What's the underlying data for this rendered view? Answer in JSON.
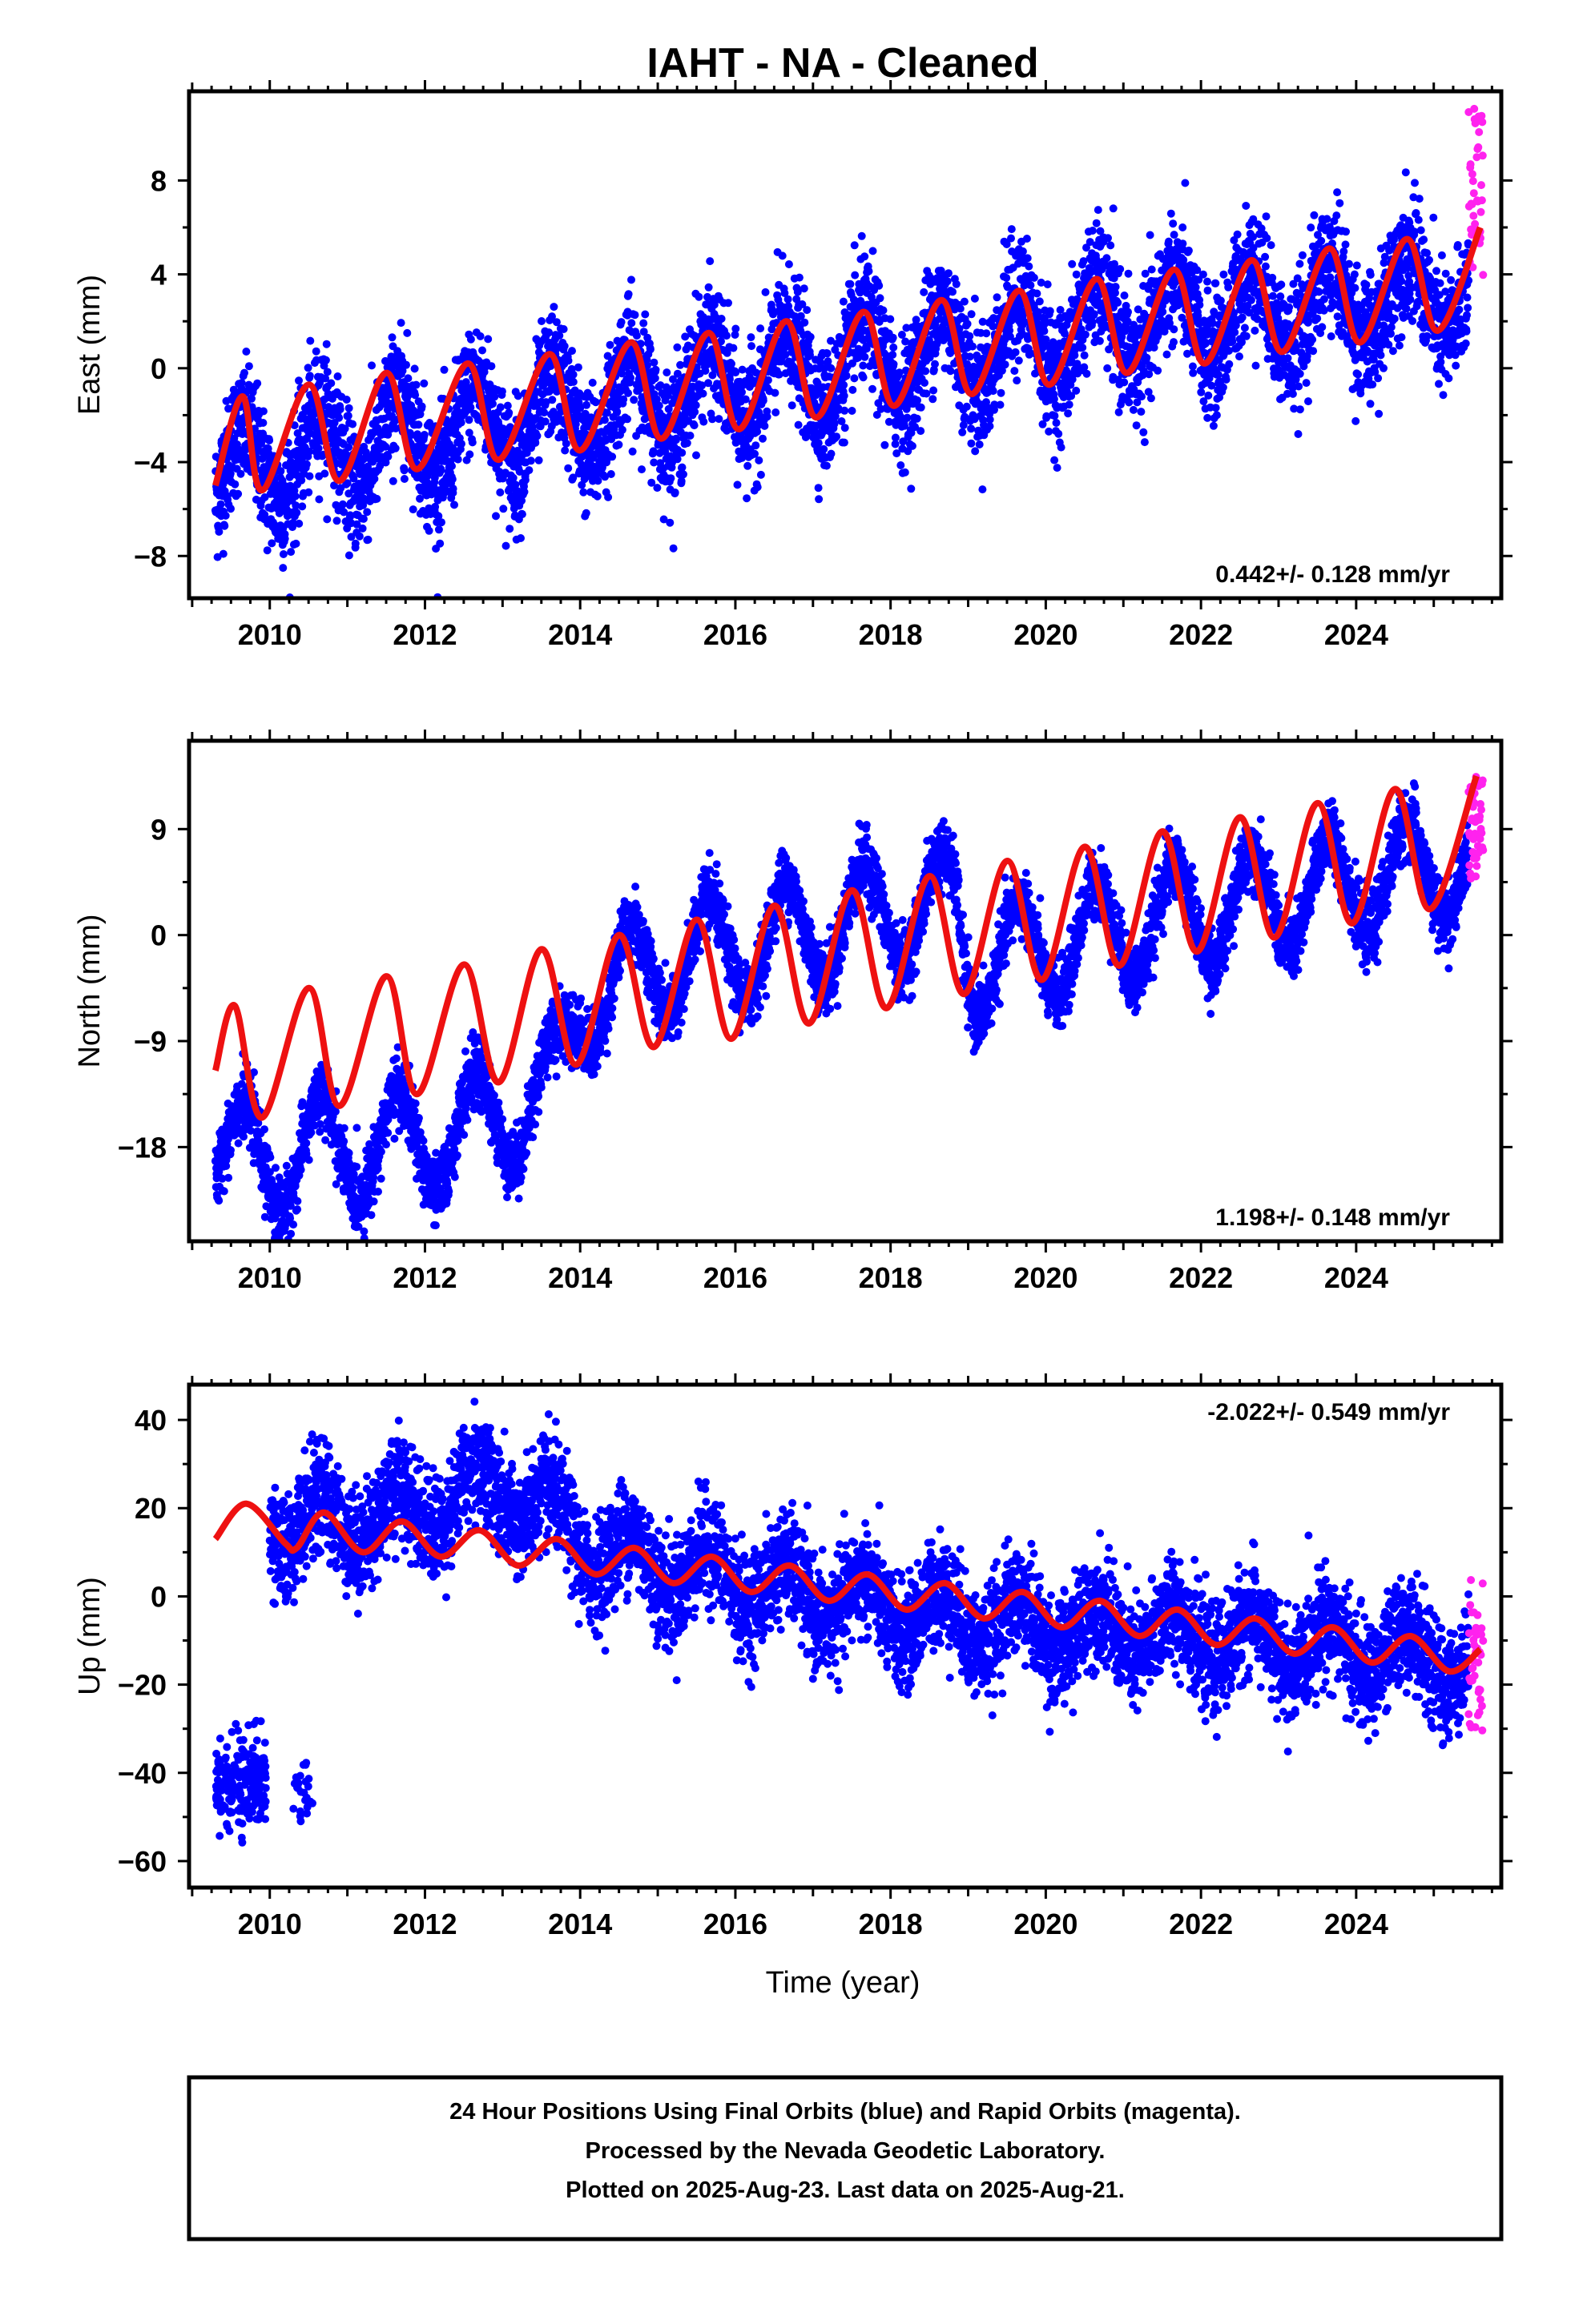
{
  "title": "IAHT  - NA - Cleaned",
  "x_axis_label": "Time (year)",
  "footer": {
    "line1": "24 Hour Positions Using Final Orbits (blue) and Rapid Orbits (magenta).",
    "line2": "Processed by the Nevada Geodetic Laboratory.",
    "line3": "Plotted on 2025-Aug-23. Last data on 2025-Aug-21."
  },
  "colors": {
    "final": "#0000ff",
    "rapid": "#ff22ee",
    "model": "#ee1111"
  },
  "chart_data": [
    {
      "type": "scatter",
      "ylabel": "East (mm)",
      "rate_text": "0.442+/- 0.128 mm/yr",
      "xlim": [
        2008.96,
        2025.87
      ],
      "ylim": [
        -9.8,
        11.8
      ],
      "xticks": [
        2010,
        2012,
        2014,
        2016,
        2018,
        2020,
        2022,
        2024
      ],
      "yticks": [
        -8,
        -4,
        0,
        4,
        8
      ],
      "series": [
        {
          "kind": "daily_positions_final",
          "x_range": [
            2009.3,
            2025.45
          ],
          "trend_points": [
            [
              2009.3,
              -4.6
            ],
            [
              2010.0,
              -4.0
            ],
            [
              2011.0,
              -3.4
            ],
            [
              2012.0,
              -2.8
            ],
            [
              2013.0,
              -2.4
            ],
            [
              2014.0,
              -1.9
            ],
            [
              2015.0,
              -1.2
            ],
            [
              2016.0,
              -0.6
            ],
            [
              2017.0,
              -0.1
            ],
            [
              2018.0,
              0.4
            ],
            [
              2019.0,
              0.9
            ],
            [
              2020.0,
              1.4
            ],
            [
              2021.0,
              1.9
            ],
            [
              2022.0,
              2.2
            ],
            [
              2023.0,
              2.5
            ],
            [
              2024.0,
              2.8
            ],
            [
              2025.45,
              3.3
            ]
          ],
          "seasonal_amplitude": 1.8,
          "scatter": 1.3
        },
        {
          "kind": "daily_positions_rapid",
          "x_range": [
            2025.45,
            2025.64
          ],
          "y_range": [
            3.0,
            11.3
          ]
        },
        {
          "kind": "model",
          "points": [
            [
              2009.3,
              -5.0
            ],
            [
              2009.65,
              -1.2
            ],
            [
              2009.9,
              -5.2
            ],
            [
              2010.5,
              -0.7
            ],
            [
              2010.9,
              -4.8
            ],
            [
              2011.5,
              -0.2
            ],
            [
              2011.9,
              -4.3
            ],
            [
              2012.55,
              0.2
            ],
            [
              2012.95,
              -3.9
            ],
            [
              2013.6,
              0.6
            ],
            [
              2014.0,
              -3.5
            ],
            [
              2014.65,
              1.1
            ],
            [
              2015.05,
              -3.0
            ],
            [
              2015.65,
              1.5
            ],
            [
              2016.05,
              -2.6
            ],
            [
              2016.65,
              2.0
            ],
            [
              2017.05,
              -2.1
            ],
            [
              2017.65,
              2.4
            ],
            [
              2018.05,
              -1.6
            ],
            [
              2018.65,
              2.9
            ],
            [
              2019.05,
              -1.1
            ],
            [
              2019.65,
              3.3
            ],
            [
              2020.05,
              -0.7
            ],
            [
              2020.65,
              3.8
            ],
            [
              2021.05,
              -0.2
            ],
            [
              2021.65,
              4.2
            ],
            [
              2022.05,
              0.2
            ],
            [
              2022.65,
              4.6
            ],
            [
              2023.05,
              0.7
            ],
            [
              2023.65,
              5.1
            ],
            [
              2024.05,
              1.1
            ],
            [
              2024.65,
              5.5
            ],
            [
              2025.05,
              1.6
            ],
            [
              2025.6,
              6.0
            ]
          ]
        }
      ]
    },
    {
      "type": "scatter",
      "ylabel": "North (mm)",
      "rate_text": "1.198+/- 0.148 mm/yr",
      "xlim": [
        2008.96,
        2025.87
      ],
      "ylim": [
        -26.0,
        16.5
      ],
      "xticks": [
        2010,
        2012,
        2014,
        2016,
        2018,
        2020,
        2022,
        2024
      ],
      "yticks": [
        -18,
        -9,
        0,
        9
      ],
      "series": [
        {
          "kind": "daily_positions_final",
          "x_range": [
            2009.3,
            2025.45
          ],
          "trend_points": [
            [
              2009.3,
              -18.5
            ],
            [
              2010.0,
              -19.0
            ],
            [
              2011.0,
              -18.0
            ],
            [
              2012.0,
              -17.5
            ],
            [
              2013.0,
              -15.5
            ],
            [
              2013.7,
              -12.5
            ],
            [
              2014.0,
              -5.5
            ],
            [
              2015.0,
              -2.5
            ],
            [
              2016.0,
              -1.0
            ],
            [
              2017.0,
              0.5
            ],
            [
              2018.0,
              2.0
            ],
            [
              2018.85,
              2.5
            ],
            [
              2019.0,
              -2.5
            ],
            [
              2020.0,
              -1.0
            ],
            [
              2021.0,
              0.5
            ],
            [
              2022.0,
              2.0
            ],
            [
              2023.0,
              3.0
            ],
            [
              2024.0,
              4.5
            ],
            [
              2025.45,
              6.0
            ]
          ],
          "seasonal_amplitude": 4.5,
          "scatter": 1.4
        },
        {
          "kind": "daily_positions_rapid",
          "x_range": [
            2025.45,
            2025.64
          ],
          "y_range": [
            4.8,
            13.5
          ]
        },
        {
          "kind": "model",
          "points": [
            [
              2009.3,
              -11.5
            ],
            [
              2009.55,
              -6.0
            ],
            [
              2009.9,
              -15.5
            ],
            [
              2010.5,
              -4.5
            ],
            [
              2010.9,
              -14.5
            ],
            [
              2011.5,
              -3.5
            ],
            [
              2011.9,
              -13.5
            ],
            [
              2012.5,
              -2.5
            ],
            [
              2012.95,
              -12.5
            ],
            [
              2013.5,
              -1.2
            ],
            [
              2013.95,
              -11.0
            ],
            [
              2014.5,
              0.0
            ],
            [
              2014.95,
              -9.5
            ],
            [
              2015.5,
              1.3
            ],
            [
              2015.95,
              -8.8
            ],
            [
              2016.5,
              2.5
            ],
            [
              2016.95,
              -7.5
            ],
            [
              2017.5,
              3.8
            ],
            [
              2017.95,
              -6.2
            ],
            [
              2018.5,
              5.0
            ],
            [
              2018.95,
              -5.0
            ],
            [
              2019.5,
              6.3
            ],
            [
              2019.95,
              -3.8
            ],
            [
              2020.5,
              7.5
            ],
            [
              2020.95,
              -2.6
            ],
            [
              2021.5,
              8.8
            ],
            [
              2021.95,
              -1.4
            ],
            [
              2022.5,
              10.0
            ],
            [
              2022.95,
              -0.2
            ],
            [
              2023.5,
              11.2
            ],
            [
              2023.95,
              1.0
            ],
            [
              2024.5,
              12.4
            ],
            [
              2024.95,
              2.2
            ],
            [
              2025.55,
              13.5
            ]
          ]
        }
      ]
    },
    {
      "type": "scatter",
      "ylabel": "Up (mm)",
      "rate_text": "-2.022+/- 0.549 mm/yr",
      "xlim": [
        2008.96,
        2025.87
      ],
      "ylim": [
        -66,
        48
      ],
      "xticks": [
        2010,
        2012,
        2014,
        2016,
        2018,
        2020,
        2022,
        2024
      ],
      "yticks": [
        -60,
        -40,
        -20,
        0,
        20,
        40
      ],
      "series": [
        {
          "kind": "daily_positions_final",
          "segments": [
            {
              "x_range": [
                2009.3,
                2009.95
              ],
              "center": -42,
              "scatter": 5
            },
            {
              "x_range": [
                2010.3,
                2010.55
              ],
              "center": -44,
              "scatter": 4,
              "sparse": true
            }
          ],
          "x_range": [
            2010.0,
            2025.45
          ],
          "trend_points": [
            [
              2010.0,
              16
            ],
            [
              2011.0,
              17
            ],
            [
              2012.0,
              20
            ],
            [
              2012.8,
              25
            ],
            [
              2013.5,
              20
            ],
            [
              2014.0,
              12
            ],
            [
              2015.0,
              7
            ],
            [
              2016.0,
              4
            ],
            [
              2017.0,
              0
            ],
            [
              2018.0,
              -3
            ],
            [
              2019.0,
              -5
            ],
            [
              2020.0,
              -7
            ],
            [
              2021.0,
              -8
            ],
            [
              2022.0,
              -9
            ],
            [
              2023.0,
              -11
            ],
            [
              2024.0,
              -12
            ],
            [
              2025.45,
              -15
            ]
          ],
          "seasonal_amplitude": 6,
          "scatter": 6
        },
        {
          "kind": "daily_positions_rapid",
          "x_range": [
            2025.45,
            2025.64
          ],
          "y_range": [
            -31,
            5
          ]
        },
        {
          "kind": "model",
          "points": [
            [
              2009.3,
              13
            ],
            [
              2009.7,
              21
            ],
            [
              2010.2,
              12
            ],
            [
              2010.35,
              11
            ],
            [
              2010.7,
              19
            ],
            [
              2011.2,
              10
            ],
            [
              2011.7,
              17
            ],
            [
              2012.2,
              9
            ],
            [
              2012.7,
              15
            ],
            [
              2013.2,
              7
            ],
            [
              2013.7,
              13
            ],
            [
              2014.2,
              5
            ],
            [
              2014.7,
              11
            ],
            [
              2015.2,
              3
            ],
            [
              2015.7,
              9
            ],
            [
              2016.2,
              1
            ],
            [
              2016.7,
              7
            ],
            [
              2017.2,
              -1
            ],
            [
              2017.7,
              5
            ],
            [
              2018.2,
              -3
            ],
            [
              2018.7,
              3
            ],
            [
              2019.2,
              -5
            ],
            [
              2019.7,
              1
            ],
            [
              2020.2,
              -7
            ],
            [
              2020.7,
              -1
            ],
            [
              2021.2,
              -9
            ],
            [
              2021.7,
              -3
            ],
            [
              2022.2,
              -11
            ],
            [
              2022.7,
              -5
            ],
            [
              2023.2,
              -13
            ],
            [
              2023.7,
              -7
            ],
            [
              2024.2,
              -15
            ],
            [
              2024.7,
              -9
            ],
            [
              2025.2,
              -17
            ],
            [
              2025.6,
              -12
            ]
          ]
        }
      ]
    }
  ]
}
